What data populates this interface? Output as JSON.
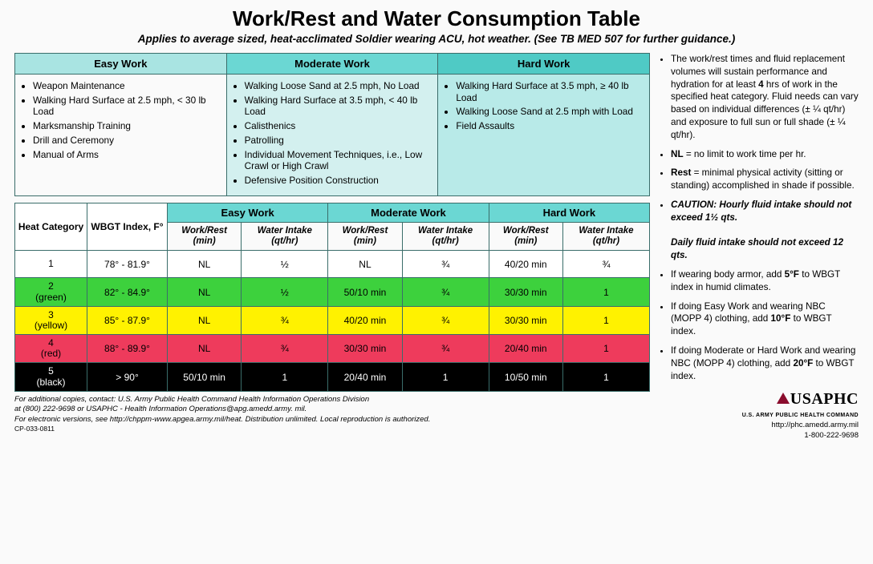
{
  "header": {
    "title": "Work/Rest and Water Consumption Table",
    "subtitle": "Applies to average sized, heat-acclimated Soldier wearing ACU, hot weather. (See TB MED 507 for further guidance.)"
  },
  "workDefs": {
    "headers": {
      "easy": "Easy Work",
      "moderate": "Moderate Work",
      "hard": "Hard Work"
    },
    "easy": [
      "Weapon Maintenance",
      "Walking Hard Surface at 2.5 mph, < 30 lb Load",
      "Marksmanship Training",
      "Drill and Ceremony",
      "Manual of Arms"
    ],
    "moderate": [
      "Walking Loose Sand at 2.5 mph, No Load",
      "Walking Hard Surface at 3.5 mph, < 40 lb Load",
      "Calisthenics",
      "Patrolling",
      "Individual Movement Techniques, i.e., Low Crawl or High Crawl",
      "Defensive Position Construction"
    ],
    "hard": [
      "Walking Hard Surface at 3.5 mph, ≥ 40 lb Load",
      "Walking Loose Sand at 2.5 mph with Load",
      "Field Assaults"
    ]
  },
  "dataTable": {
    "col_heat": "Heat Category",
    "col_wbgt": "WBGT Index, F°",
    "group_easy": "Easy Work",
    "group_moderate": "Moderate Work",
    "group_hard": "Hard Work",
    "sub_workrest": "Work/Rest (min)",
    "sub_water": "Water Intake (qt/hr)",
    "rows": [
      {
        "cat": "1",
        "wbgt": "78° - 81.9°",
        "e_wr": "NL",
        "e_wi": "½",
        "m_wr": "NL",
        "m_wi": "¾",
        "h_wr": "40/20 min",
        "h_wi": "¾",
        "cls": "row-1"
      },
      {
        "cat": "2 (green)",
        "wbgt": "82° - 84.9°",
        "e_wr": "NL",
        "e_wi": "½",
        "m_wr": "50/10 min",
        "m_wi": "¾",
        "h_wr": "30/30 min",
        "h_wi": "1",
        "cls": "row-2"
      },
      {
        "cat": "3 (yellow)",
        "wbgt": "85° - 87.9°",
        "e_wr": "NL",
        "e_wi": "¾",
        "m_wr": "40/20 min",
        "m_wi": "¾",
        "h_wr": "30/30 min",
        "h_wi": "1",
        "cls": "row-3"
      },
      {
        "cat": "4 (red)",
        "wbgt": "88° - 89.9°",
        "e_wr": "NL",
        "e_wi": "¾",
        "m_wr": "30/30 min",
        "m_wi": "¾",
        "h_wr": "20/40 min",
        "h_wi": "1",
        "cls": "row-4"
      },
      {
        "cat": "5 (black)",
        "wbgt": "> 90°",
        "e_wr": "50/10 min",
        "e_wi": "1",
        "m_wr": "20/40 min",
        "m_wi": "1",
        "h_wr": "10/50 min",
        "h_wi": "1",
        "cls": "row-5"
      }
    ]
  },
  "notes": [
    {
      "html": "The work/rest times and fluid replacement volumes will sustain performance and hydration for at least <b>4</b> hrs of work in the specified heat category.  Fluid needs can vary based on individual differences (± ¼ qt/hr) and exposure to full sun or full shade (± ¼ qt/hr)."
    },
    {
      "html": "<b>NL</b> = no limit to work time per hr."
    },
    {
      "html": "<b>Rest</b> = minimal physical activity (sitting or standing) accomplished in shade if possible."
    },
    {
      "html": "<b><i>CAUTION: Hourly fluid intake should not exceed 1½ qts.</i></b><br><br><b><i>Daily fluid intake should not exceed 12 qts.</i></b>"
    },
    {
      "html": "If wearing body armor, add <b>5°F</b> to WBGT index in humid climates."
    },
    {
      "html": "If doing Easy Work and wearing NBC (MOPP 4) clothing, add <b>10°F</b> to WBGT index."
    },
    {
      "html": "If doing Moderate or Hard Work and wearing NBC (MOPP 4) clothing, add <b>20°F</b> to WBGT index."
    }
  ],
  "footer": {
    "line1": "For additional copies, contact: U.S. Army Public Health Command Health Information Operations Division",
    "line2": "at (800) 222-9698 or USAPHC - Health Information Operations@apg.amedd.army. mil.",
    "line3": "For electronic versions, see http://chppm-www.apgea.army.mil/heat. Distribution unlimited. Local reproduction is authorized.",
    "docid": "CP-033-0811"
  },
  "logo": {
    "name": "USAPHC",
    "sub": "U.S. ARMY PUBLIC HEALTH COMMAND",
    "url": "http://phc.amedd.army.mil",
    "phone": "1-800-222-9698"
  },
  "colors": {
    "border": "#3a6d6a",
    "head_easy": "#a9e4e2",
    "head_mod": "#6bd7d3",
    "head_hard": "#4fcac5",
    "row_green": "#3dd13d",
    "row_yellow": "#fff200",
    "row_red": "#ee3b5c",
    "row_black": "#000000",
    "logo_triangle": "#8a0c2d"
  }
}
